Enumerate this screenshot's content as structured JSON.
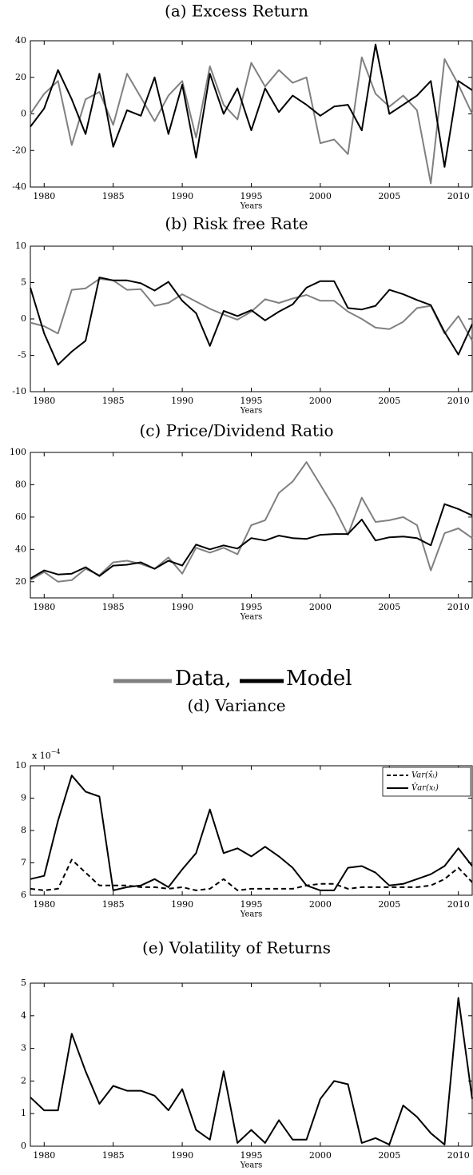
{
  "legend": [
    {
      "label": "Data,",
      "color": "#808080"
    },
    {
      "label": "Model",
      "color": "#000000"
    }
  ],
  "chart_data": [
    {
      "type": "line",
      "title": "(a) Excess Return",
      "xlabel": "Years",
      "x": [
        1979,
        1980,
        1981,
        1982,
        1983,
        1984,
        1985,
        1986,
        1987,
        1988,
        1989,
        1990,
        1991,
        1992,
        1993,
        1994,
        1995,
        1996,
        1997,
        1998,
        1999,
        2000,
        2001,
        2002,
        2003,
        2004,
        2005,
        2006,
        2007,
        2008,
        2009,
        2010,
        2011
      ],
      "xlim": [
        1979,
        2011
      ],
      "xticks": [
        1980,
        1985,
        1990,
        1995,
        2000,
        2005,
        2010
      ],
      "ylim": [
        -40,
        40
      ],
      "yticks": [
        -40,
        -20,
        0,
        20,
        40
      ],
      "series": [
        {
          "color": "#808080",
          "values": [
            0,
            11,
            18,
            -17,
            8,
            12,
            -6,
            22,
            9,
            -4,
            10,
            18,
            -13,
            26,
            5,
            -3,
            28,
            15,
            24,
            17,
            20,
            -16,
            -14,
            -22,
            31,
            11,
            4,
            10,
            2,
            -38,
            30,
            16,
            0
          ]
        },
        {
          "color": "#000000",
          "values": [
            -7,
            3,
            24,
            8,
            -11,
            22,
            -18,
            2,
            -1,
            20,
            -11,
            16,
            -24,
            22,
            0,
            14,
            -9,
            14,
            1,
            10,
            5,
            -1,
            4,
            5,
            -9,
            38,
            0,
            5,
            10,
            18,
            -29,
            18,
            13
          ]
        }
      ]
    },
    {
      "type": "line",
      "title": "(b) Risk free Rate",
      "xlabel": "Years",
      "x": [
        1979,
        1980,
        1981,
        1982,
        1983,
        1984,
        1985,
        1986,
        1987,
        1988,
        1989,
        1990,
        1991,
        1992,
        1993,
        1994,
        1995,
        1996,
        1997,
        1998,
        1999,
        2000,
        2001,
        2002,
        2003,
        2004,
        2005,
        2006,
        2007,
        2008,
        2009,
        2010,
        2011
      ],
      "xlim": [
        1979,
        2011
      ],
      "xticks": [
        1980,
        1985,
        1990,
        1995,
        2000,
        2005,
        2010
      ],
      "ylim": [
        -10,
        10
      ],
      "yticks": [
        -10,
        -5,
        0,
        5,
        10
      ],
      "series": [
        {
          "color": "#808080",
          "values": [
            -0.5,
            -1,
            -2,
            4,
            4.2,
            5.5,
            5.3,
            4,
            4.1,
            1.8,
            2.2,
            3.4,
            2.4,
            1.4,
            0.6,
            -0.1,
            1,
            2.7,
            2.2,
            2.8,
            3.3,
            2.5,
            2.5,
            1,
            0,
            -1.2,
            -1.4,
            -0.4,
            1.5,
            1.8,
            -2,
            0.4,
            -3
          ]
        },
        {
          "color": "#000000",
          "values": [
            4.3,
            -2,
            -6.3,
            -4.5,
            -3,
            5.7,
            5.3,
            5.3,
            4.9,
            3.9,
            5.1,
            2.5,
            0.8,
            -3.7,
            1.1,
            0.4,
            1.2,
            -0.2,
            1,
            2,
            4.3,
            5.2,
            5.2,
            1.5,
            1.3,
            1.8,
            4,
            3.4,
            2.6,
            1.9,
            -1.8,
            -4.9,
            -0.7
          ]
        }
      ]
    },
    {
      "type": "line",
      "title": "(c) Price/Dividend Ratio",
      "xlabel": "Years",
      "x": [
        1979,
        1980,
        1981,
        1982,
        1983,
        1984,
        1985,
        1986,
        1987,
        1988,
        1989,
        1990,
        1991,
        1992,
        1993,
        1994,
        1995,
        1996,
        1997,
        1998,
        1999,
        2000,
        2001,
        2002,
        2003,
        2004,
        2005,
        2006,
        2007,
        2008,
        2009,
        2010,
        2011
      ],
      "xlim": [
        1979,
        2011
      ],
      "xticks": [
        1980,
        1985,
        1990,
        1995,
        2000,
        2005,
        2010
      ],
      "ylim": [
        10,
        100
      ],
      "yticks": [
        20,
        40,
        60,
        80,
        100
      ],
      "series": [
        {
          "color": "#808080",
          "values": [
            21,
            26,
            20,
            21,
            28,
            24,
            32,
            33,
            31,
            28,
            35,
            25,
            41,
            38,
            41,
            37,
            55,
            58,
            75,
            82,
            94,
            80,
            66,
            49,
            72,
            57,
            58,
            60,
            55,
            27,
            50,
            53,
            47
          ]
        },
        {
          "color": "#000000",
          "values": [
            22,
            27,
            24.5,
            25,
            29,
            23.5,
            30,
            30.5,
            32,
            28,
            33,
            30,
            43,
            40,
            42.5,
            40.5,
            47,
            45.5,
            48.5,
            47,
            46.5,
            49,
            49.5,
            49.5,
            58.5,
            45.5,
            47.5,
            48,
            47,
            42.5,
            68,
            65,
            61
          ]
        }
      ]
    },
    {
      "type": "line",
      "title": "(d) Variance",
      "xlabel": "Years",
      "y_multiplier": {
        "base": "x 10",
        "exponent": "−4"
      },
      "x": [
        1979,
        1980,
        1981,
        1982,
        1983,
        1984,
        1985,
        1986,
        1987,
        1988,
        1989,
        1990,
        1991,
        1992,
        1993,
        1994,
        1995,
        1996,
        1997,
        1998,
        1999,
        2000,
        2001,
        2002,
        2003,
        2004,
        2005,
        2006,
        2007,
        2008,
        2009,
        2010,
        2011
      ],
      "xlim": [
        1979,
        2011
      ],
      "xticks": [
        1980,
        1985,
        1990,
        1995,
        2000,
        2005,
        2010
      ],
      "ylim": [
        6,
        10
      ],
      "yticks": [
        6,
        7,
        8,
        9,
        10
      ],
      "legend": "upper right",
      "series": [
        {
          "name": "Var(x̂ₜ)",
          "color": "#000000",
          "dashed": true,
          "values": [
            6.2,
            6.15,
            6.2,
            7.1,
            6.7,
            6.3,
            6.3,
            6.3,
            6.25,
            6.25,
            6.2,
            6.25,
            6.15,
            6.2,
            6.5,
            6.15,
            6.2,
            6.2,
            6.2,
            6.2,
            6.3,
            6.35,
            6.35,
            6.2,
            6.25,
            6.25,
            6.25,
            6.25,
            6.25,
            6.3,
            6.5,
            6.85,
            6.4
          ]
        },
        {
          "name": "V̂ar(xₜ)",
          "color": "#000000",
          "dashed": false,
          "values": [
            6.5,
            6.6,
            8.3,
            9.7,
            9.2,
            9.05,
            6.15,
            6.25,
            6.3,
            6.5,
            6.25,
            6.8,
            7.3,
            8.65,
            7.3,
            7.45,
            7.2,
            7.5,
            7.2,
            6.85,
            6.3,
            6.15,
            6.15,
            6.85,
            6.9,
            6.7,
            6.3,
            6.35,
            6.5,
            6.65,
            6.9,
            7.45,
            6.9
          ]
        }
      ]
    },
    {
      "type": "line",
      "title": "(e) Volatility of Returns",
      "xlabel": "Years",
      "x": [
        1979,
        1980,
        1981,
        1982,
        1983,
        1984,
        1985,
        1986,
        1987,
        1988,
        1989,
        1990,
        1991,
        1992,
        1993,
        1994,
        1995,
        1996,
        1997,
        1998,
        1999,
        2000,
        2001,
        2002,
        2003,
        2004,
        2005,
        2006,
        2007,
        2008,
        2009,
        2010,
        2011
      ],
      "xlim": [
        1979,
        2011
      ],
      "xticks": [
        1980,
        1985,
        1990,
        1995,
        2000,
        2005,
        2010
      ],
      "ylim": [
        0,
        5
      ],
      "yticks": [
        0,
        1,
        2,
        3,
        4,
        5
      ],
      "series": [
        {
          "color": "#000000",
          "values": [
            1.5,
            1.1,
            1.1,
            3.45,
            2.3,
            1.3,
            1.85,
            1.7,
            1.7,
            1.55,
            1.1,
            1.75,
            0.5,
            0.2,
            2.3,
            0.1,
            0.5,
            0.1,
            0.8,
            0.2,
            0.2,
            1.45,
            2,
            1.9,
            0.1,
            0.25,
            0.05,
            1.25,
            0.9,
            0.4,
            0.05,
            4.55,
            1.45
          ]
        }
      ]
    }
  ]
}
